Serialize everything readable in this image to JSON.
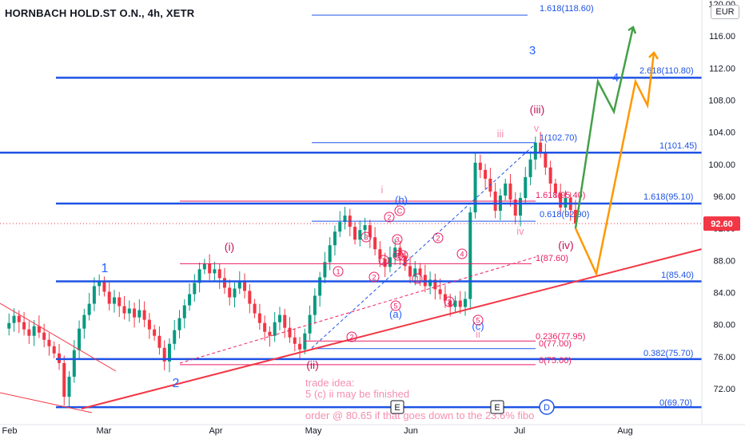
{
  "header": {
    "symbol_title": "HORNBACH HOLD.ST O.N., 4h, XETR",
    "currency": "EUR"
  },
  "chart_data": {
    "type": "line",
    "title": "HORNBACH HOLD.ST O.N., 4h, XETR",
    "ylim": [
      69,
      121
    ],
    "y_ticks": [
      "120.00",
      "116.00",
      "112.00",
      "108.00",
      "104.00",
      "100.00",
      "96.00",
      "92.00",
      "88.00",
      "84.00",
      "80.00",
      "76.00",
      "72.00"
    ],
    "y_tick_values": [
      120,
      116,
      112,
      108,
      104,
      100,
      96,
      92,
      88,
      84,
      80,
      76,
      72
    ],
    "x_ticks": [
      "Feb",
      "Mar",
      "Apr",
      "May",
      "Jun",
      "Jul",
      "Aug"
    ],
    "current_price_label": "92.60",
    "current_price": 92.6,
    "price_path": [
      79.5,
      80.2,
      81.1,
      80.3,
      79.4,
      78.6,
      79.8,
      79.0,
      78.1,
      77.3,
      76.4,
      75.2,
      71.0,
      73.5,
      76.8,
      79.5,
      81.2,
      82.6,
      84.8,
      85.4,
      84.1,
      82.6,
      83.4,
      82.3,
      81.4,
      82.0,
      80.9,
      81.8,
      80.6,
      79.4,
      78.6,
      77.1,
      75.4,
      77.6,
      79.3,
      80.8,
      82.4,
      83.8,
      85.2,
      86.9,
      87.6,
      86.4,
      86.9,
      85.8,
      84.6,
      83.4,
      84.5,
      85.3,
      84.2,
      82.6,
      81.4,
      80.2,
      79.1,
      78.6,
      80.3,
      81.2,
      79.6,
      78.4,
      77.6,
      76.9,
      78.9,
      81.2,
      83.6,
      85.9,
      87.8,
      89.9,
      91.6,
      92.8,
      93.6,
      92.2,
      90.6,
      91.8,
      92.4,
      90.9,
      89.4,
      88.2,
      87.2,
      88.4,
      89.6,
      88.6,
      87.3,
      86.0,
      87.0,
      86.2,
      84.8,
      85.6,
      84.4,
      83.8,
      83.0,
      82.2,
      83.0,
      82.2,
      83.2,
      94.0,
      100.2,
      99.3,
      98.2,
      96.6,
      94.2,
      96.1,
      97.6,
      95.6,
      93.6,
      95.8,
      98.4,
      100.6,
      102.7,
      101.5,
      99.6,
      97.6,
      96.4,
      94.6,
      95.8,
      94.3,
      92.6
    ],
    "price_color": "#089981",
    "annotations": {
      "fib_blue_labels": [
        "1.618(118.60)",
        "2.618(110.80)",
        "1(102.70)",
        "1(101.45)",
        "1.618(95.10)",
        "0.618(92.90)",
        "1(85.40)",
        "0.382(75.70)",
        "0(69.70)"
      ],
      "fib_red_labels": [
        "1.618(95.40)",
        "1(87.60)",
        "0.236(77.95)",
        "0(77.00)",
        "0(75.00)"
      ],
      "wave_labels_blue": [
        "1",
        "2",
        "3",
        "4",
        "(a)",
        "(b)",
        "(c)"
      ],
      "wave_labels_red": [
        "(i)",
        "(ii)",
        "(iii)",
        "(iv)"
      ],
      "wave_labels_pink": [
        "i",
        "ii",
        "iii",
        "iv",
        "v"
      ],
      "circle_numbers": [
        "1",
        "2",
        "3",
        "4",
        "5"
      ],
      "circle_letters": [
        "A",
        "B",
        "C"
      ],
      "event_markers": [
        "E",
        "E"
      ],
      "dividend_marker": "D",
      "trade_idea_title": "trade idea:",
      "trade_idea_line1": "5 (c) ii may be finished",
      "trade_idea_line2": "order @ 80.65 if that goes down to the 23.6% fibo",
      "colors": {
        "fib_blue": "#1e53e5",
        "fib_red": "#e91e63",
        "trendline": "#f23645",
        "projection_green": "#43a047",
        "projection_orange": "#ff9800",
        "wave_blue": "#2962ff",
        "wave_red": "#c2185b",
        "wave_pink": "#f48fb1",
        "price_badge": "#f23645"
      }
    }
  }
}
